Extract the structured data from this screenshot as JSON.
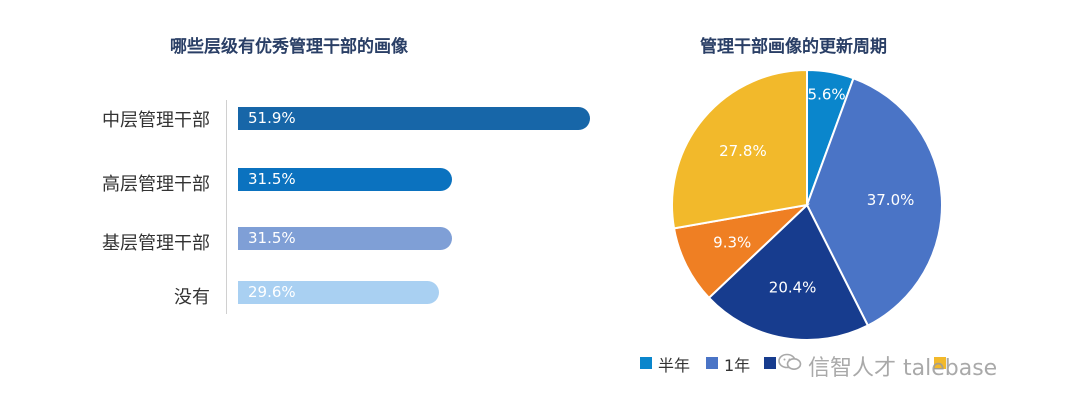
{
  "chart_data": [
    {
      "type": "bar",
      "orientation": "horizontal",
      "title": "哪些层级有优秀管理干部的画像",
      "categories": [
        "中层管理干部",
        "高层管理干部",
        "基层管理干部",
        "没有"
      ],
      "values": [
        51.9,
        31.5,
        31.5,
        29.6
      ],
      "value_labels": [
        "51.9%",
        "31.5%",
        "31.5%",
        "29.6%"
      ],
      "colors": [
        "#1766a8",
        "#0b72bf",
        "#7f9fd6",
        "#a9d0f2"
      ]
    },
    {
      "type": "pie",
      "title": "管理干部画像的更新周期",
      "labels": [
        "半年",
        "1年",
        "",
        "",
        ""
      ],
      "values": [
        5.6,
        37.0,
        20.4,
        9.3,
        27.8
      ],
      "value_labels": [
        "5.6%",
        "37.0%",
        "20.4%",
        "9.3%",
        "27.8%"
      ],
      "colors": [
        "#0a86cc",
        "#4a74c6",
        "#173c8e",
        "#ef7f23",
        "#f2b92b"
      ],
      "legend_position": "bottom"
    }
  ],
  "legend": {
    "items": [
      {
        "label": "半年",
        "color": "#0a86cc"
      },
      {
        "label": "1年",
        "color": "#4a74c6"
      },
      {
        "label": "",
        "color": "#173c8e"
      },
      {
        "label": "",
        "color": "#f2b92b"
      }
    ]
  },
  "watermark": {
    "text": "信智人才 talebase"
  }
}
